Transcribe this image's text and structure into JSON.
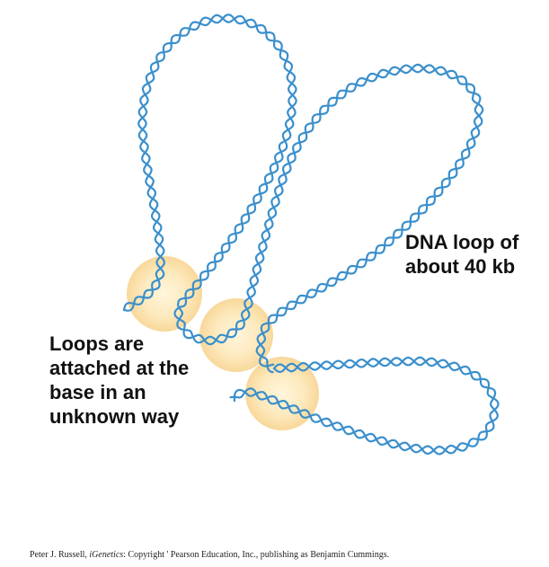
{
  "labels": {
    "dna_loop": [
      "DNA loop of",
      "about 40 kb"
    ],
    "attachment": [
      "Loops are",
      "attached at the",
      "base in an",
      "unknown way"
    ]
  },
  "credit": {
    "author": "Peter J. Russell, ",
    "work": "iGenetics",
    "rest": ": Copyright ' Pearson Education, Inc., publishing as Benjamin Cummings."
  },
  "colors": {
    "dna_strand": "#3a8fcc",
    "scaffold_protein": "#fde6b0",
    "text": "#111111"
  }
}
